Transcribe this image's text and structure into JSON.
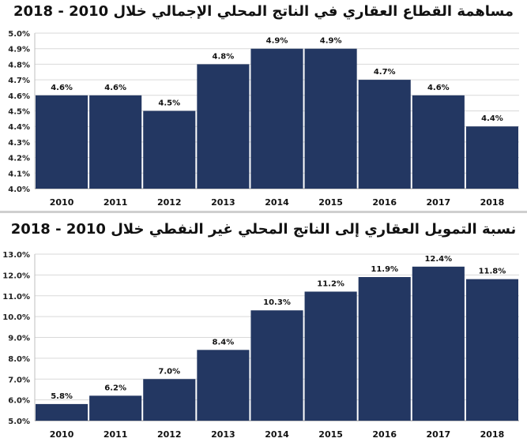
{
  "chart_data": [
    {
      "type": "bar",
      "title": "مساهمة القطاع العقاري في الناتج المحلي الإجمالي خلال 2010 - 2018",
      "categories": [
        "2010",
        "2011",
        "2012",
        "2013",
        "2014",
        "2015",
        "2016",
        "2017",
        "2018"
      ],
      "values": [
        4.6,
        4.6,
        4.5,
        4.8,
        4.9,
        4.9,
        4.7,
        4.6,
        4.4
      ],
      "value_labels": [
        "4.6%",
        "4.6%",
        "4.5%",
        "4.8%",
        "4.9%",
        "4.9%",
        "4.7%",
        "4.6%",
        "4.4%"
      ],
      "y_ticks": [
        "4.0%",
        "4.1%",
        "4.2%",
        "4.3%",
        "4.4%",
        "4.5%",
        "4.6%",
        "4.7%",
        "4.8%",
        "4.9%",
        "5.0%"
      ],
      "ylim": [
        4.0,
        5.0
      ],
      "xlabel": "",
      "ylabel": "",
      "grid": true,
      "bar_color": "#233762"
    },
    {
      "type": "bar",
      "title": "نسبة التمويل العقاري إلى الناتج المحلي غير النفطي خلال 2010 - 2018",
      "categories": [
        "2010",
        "2011",
        "2012",
        "2013",
        "2014",
        "2015",
        "2016",
        "2017",
        "2018"
      ],
      "values": [
        5.8,
        6.2,
        7.0,
        8.4,
        10.3,
        11.2,
        11.9,
        12.4,
        11.8
      ],
      "value_labels": [
        "5.8%",
        "6.2%",
        "7.0%",
        "8.4%",
        "10.3%",
        "11.2%",
        "11.9%",
        "12.4%",
        "11.8%"
      ],
      "y_ticks": [
        "5.0%",
        "6.0%",
        "7.0%",
        "8.0%",
        "9.0%",
        "10.0%",
        "11.0%",
        "12.0%",
        "13.0%"
      ],
      "ylim": [
        5.0,
        13.0
      ],
      "xlabel": "",
      "ylabel": "",
      "grid": true,
      "bar_color": "#233762"
    }
  ]
}
